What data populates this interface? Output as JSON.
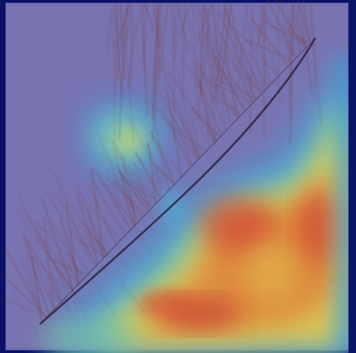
{
  "image": {
    "kind": "heatmap-overlay-on-grayscale-microscopy",
    "colormap": "jet",
    "palette": {
      "border_navy": "#0b1166",
      "base_lavender": "#6d6fb4",
      "paper_tint": "#8c85b8",
      "streak_brown": "#7a3b2e",
      "diagonal_dark": "#2b1d3a",
      "hot_red": "#e0442a",
      "hot_orange": "#f07a2a",
      "warm_yellow": "#f2c64a",
      "mid_green": "#7fd6a0",
      "cool_cyan": "#45c6e6"
    }
  }
}
